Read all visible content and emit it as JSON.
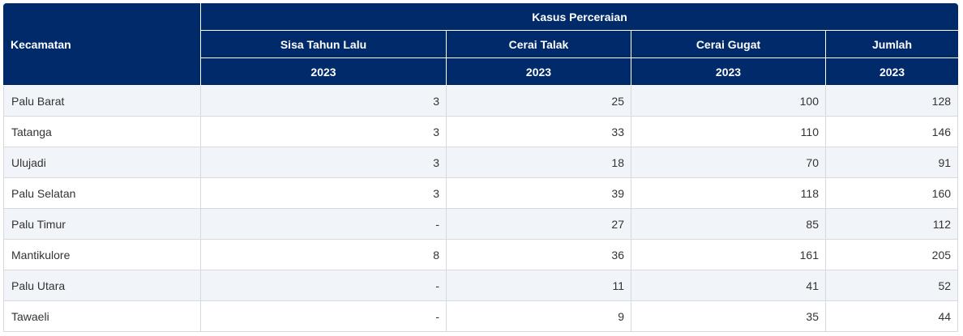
{
  "table": {
    "row_header": "Kecamatan",
    "group_header": "Kasus Perceraian",
    "columns": [
      "Sisa Tahun Lalu",
      "Cerai Talak",
      "Cerai Gugat",
      "Jumlah"
    ],
    "years": [
      "2023",
      "2023",
      "2023",
      "2023"
    ],
    "rows": [
      {
        "name": "Palu Barat",
        "values": [
          "3",
          "25",
          "100",
          "128"
        ]
      },
      {
        "name": "Tatanga",
        "values": [
          "3",
          "33",
          "110",
          "146"
        ]
      },
      {
        "name": "Ulujadi",
        "values": [
          "3",
          "18",
          "70",
          "91"
        ]
      },
      {
        "name": "Palu Selatan",
        "values": [
          "3",
          "39",
          "118",
          "160"
        ]
      },
      {
        "name": "Palu Timur",
        "values": [
          "-",
          "27",
          "85",
          "112"
        ]
      },
      {
        "name": "Mantikulore",
        "values": [
          "8",
          "36",
          "161",
          "205"
        ]
      },
      {
        "name": "Palu Utara",
        "values": [
          "-",
          "11",
          "41",
          "52"
        ]
      },
      {
        "name": "Tawaeli",
        "values": [
          "-",
          "9",
          "35",
          "44"
        ]
      }
    ]
  },
  "colors": {
    "header_bg": "#002a6a",
    "stripe_bg": "#f1f4f9"
  }
}
